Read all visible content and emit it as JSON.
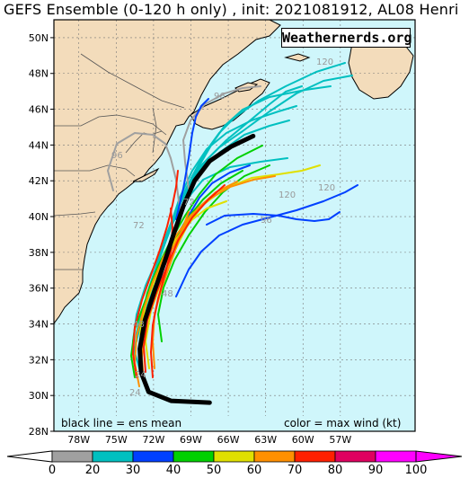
{
  "title": "GEFS Ensemble (0-120 h only) , init: 2021081912, AL08 Henri",
  "watermark": "Weathernerds.org",
  "legend_left": "black line = ens mean",
  "legend_right": "color = max wind (kt)",
  "lat_labels": [
    "50N",
    "48N",
    "46N",
    "44N",
    "42N",
    "40N",
    "38N",
    "36N",
    "34N",
    "32N",
    "30N",
    "28N"
  ],
  "lon_labels": [
    "78W",
    "75W",
    "72W",
    "69W",
    "66W",
    "63W",
    "60W",
    "57W"
  ],
  "colorbar_labels": [
    "0",
    "20",
    "30",
    "40",
    "50",
    "60",
    "70",
    "80",
    "90",
    "100"
  ],
  "hour_labels": [
    "120",
    "120",
    "120",
    "96",
    "96",
    "96",
    "72",
    "72",
    "48",
    "48",
    "24",
    "24"
  ],
  "chart_data": {
    "type": "map",
    "extent": {
      "lon": [
        -80,
        -51
      ],
      "lat": [
        28,
        51
      ]
    },
    "mean_track": [
      [
        -67.5,
        29.6
      ],
      [
        -70.6,
        29.7
      ],
      [
        -72.4,
        30.2
      ],
      [
        -73.0,
        31.3
      ],
      [
        -73.1,
        32.6
      ],
      [
        -72.7,
        34.2
      ],
      [
        -71.9,
        35.9
      ],
      [
        -71.1,
        37.5
      ],
      [
        -70.4,
        39.0
      ],
      [
        -69.6,
        40.6
      ],
      [
        -68.7,
        42.0
      ],
      [
        -67.5,
        43.1
      ],
      [
        -65.8,
        43.9
      ],
      [
        -64.0,
        44.5
      ]
    ],
    "colorbar": {
      "bounds": [
        0,
        20,
        30,
        40,
        50,
        60,
        70,
        80,
        90,
        100
      ],
      "colors": [
        "#a0a0a0",
        "#00c0c0",
        "#0040ff",
        "#00d000",
        "#e0e000",
        "#ff9000",
        "#ff2000",
        "#e00060",
        "#ff00ff"
      ]
    }
  }
}
